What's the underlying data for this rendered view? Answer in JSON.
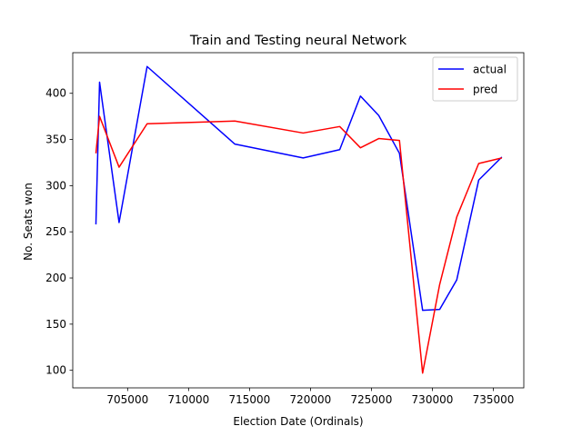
{
  "chart_data": {
    "type": "line",
    "title": "Train and Testing neural Network",
    "xlabel": "Election Date (Ordinals)",
    "ylabel": "No. Seats won",
    "xlim": [
      700500,
      737500
    ],
    "ylim": [
      81,
      444
    ],
    "xticks": [
      705000,
      710000,
      715000,
      720000,
      725000,
      730000,
      735000
    ],
    "yticks": [
      100,
      150,
      200,
      250,
      300,
      350,
      400
    ],
    "grid": false,
    "legend_position": "top-right",
    "series": [
      {
        "name": "actual",
        "color": "#0000ff",
        "x": [
          702400,
          702700,
          704300,
          706600,
          713800,
          719400,
          722400,
          724100,
          725600,
          727300,
          729200,
          730600,
          732000,
          733800,
          735700
        ],
        "y": [
          258,
          412,
          260,
          429,
          345,
          330,
          339,
          397,
          376,
          335,
          165,
          166,
          198,
          306,
          331
        ]
      },
      {
        "name": "pred",
        "color": "#ff0000",
        "x": [
          702400,
          702700,
          704300,
          706600,
          713800,
          719400,
          722400,
          724100,
          725600,
          727300,
          729200,
          730600,
          732000,
          733800,
          735700
        ],
        "y": [
          335,
          375,
          320,
          367,
          370,
          357,
          364,
          341,
          351,
          349,
          97,
          193,
          266,
          324,
          330
        ]
      }
    ]
  }
}
